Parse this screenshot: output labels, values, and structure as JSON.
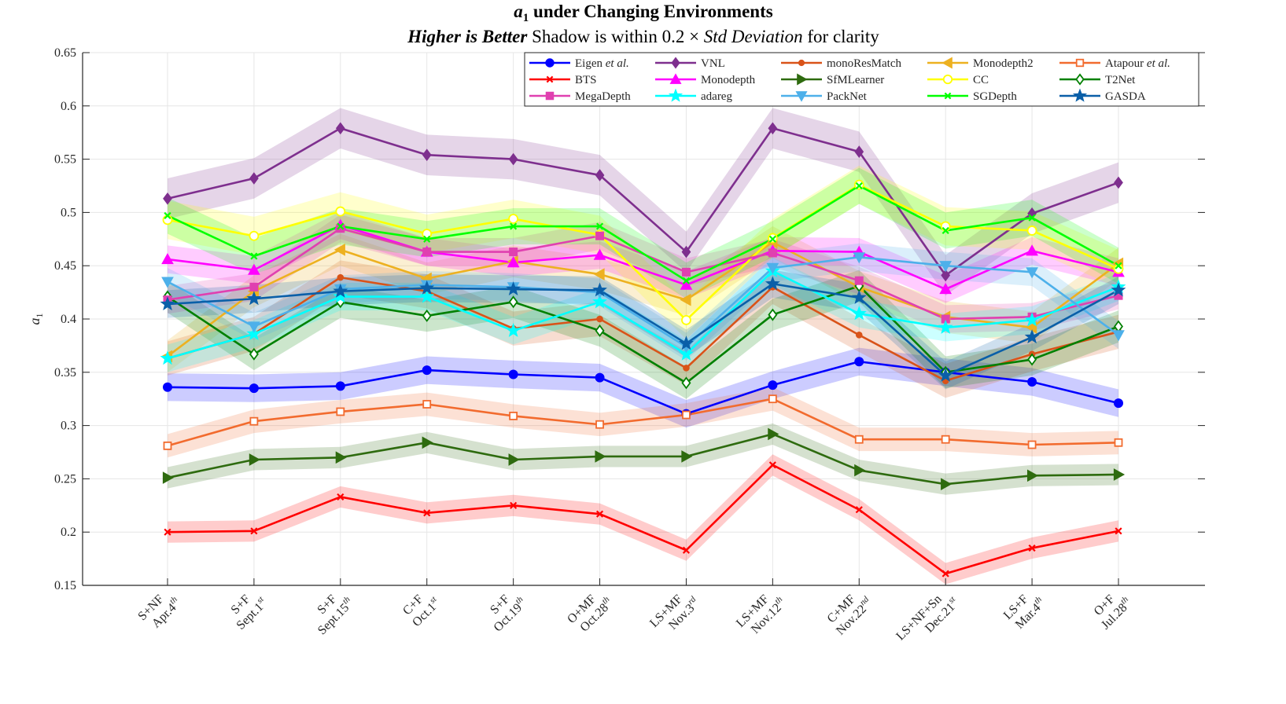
{
  "chart_data": {
    "type": "line",
    "title": "a1 under Changing Environments",
    "title_main": "under Changing Environments",
    "title_symbol": "a",
    "title_subscript": "1",
    "subtitle_parts": {
      "bold": "Higher is Better",
      "plain1": " Shadow is within 0.2 × ",
      "italic": "Std Deviation",
      "plain2": " for clarity"
    },
    "ylabel": "a",
    "ylabel_subscript": "1",
    "ylim": [
      0.15,
      0.65
    ],
    "yticks": [
      "0.15",
      "0.2",
      "0.25",
      "0.3",
      "0.35",
      "0.4",
      "0.45",
      "0.5",
      "0.55",
      "0.6",
      "0.65"
    ],
    "grid": true,
    "legend_position": "top-right",
    "categories": [
      {
        "line1": "S+NF",
        "line2": "Apr.4",
        "sup": "th"
      },
      {
        "line1": "S+F",
        "line2": "Sept.1",
        "sup": "st"
      },
      {
        "line1": "S+F",
        "line2": "Sept.15",
        "sup": "th"
      },
      {
        "line1": "C+F",
        "line2": "Oct.1",
        "sup": "st"
      },
      {
        "line1": "S+F",
        "line2": "Oct.19",
        "sup": "th"
      },
      {
        "line1": "O+MF",
        "line2": "Oct.28",
        "sup": "th"
      },
      {
        "line1": "LS+MF",
        "line2": "Nov.3",
        "sup": "rd"
      },
      {
        "line1": "LS+MF",
        "line2": "Nov.12",
        "sup": "th"
      },
      {
        "line1": "C+MF",
        "line2": "Nov.22",
        "sup": "nd"
      },
      {
        "line1": "LS+NF+Sn",
        "line2": "Dec.21",
        "sup": "st"
      },
      {
        "line1": "LS+F",
        "line2": "Mar.4",
        "sup": "th"
      },
      {
        "line1": "O+F",
        "line2": "Jul.28",
        "sup": "th"
      }
    ],
    "series": [
      {
        "name": "Eigen",
        "name_suffix": " et al.",
        "color": "#0000ff",
        "marker": "circle",
        "values": [
          0.336,
          0.335,
          0.337,
          0.352,
          0.348,
          0.345,
          0.311,
          0.338,
          0.36,
          0.35,
          0.341,
          0.321
        ],
        "shade": 0.013
      },
      {
        "name": "VNL",
        "color": "#7e2f8e",
        "marker": "diamond",
        "values": [
          0.513,
          0.532,
          0.579,
          0.554,
          0.55,
          0.535,
          0.463,
          0.579,
          0.557,
          0.441,
          0.499,
          0.528
        ],
        "shade": 0.019
      },
      {
        "name": "monoResMatch",
        "color": "#d95319",
        "marker": "dot",
        "values": [
          0.363,
          0.386,
          0.439,
          0.426,
          0.391,
          0.4,
          0.354,
          0.43,
          0.385,
          0.342,
          0.367,
          0.388
        ],
        "shade": 0.016
      },
      {
        "name": "Monodepth2",
        "color": "#edb120",
        "marker": "triangle-left",
        "values": [
          0.365,
          0.426,
          0.465,
          0.438,
          0.454,
          0.442,
          0.418,
          0.472,
          0.43,
          0.402,
          0.392,
          0.452
        ],
        "shade": 0.015
      },
      {
        "name": "Atapour",
        "name_suffix": " et al.",
        "color": "#f26b2e",
        "marker": "square-open",
        "values": [
          0.281,
          0.304,
          0.313,
          0.32,
          0.309,
          0.301,
          0.31,
          0.325,
          0.287,
          0.287,
          0.282,
          0.284
        ],
        "shade": 0.011
      },
      {
        "name": "BTS",
        "color": "#ff0000",
        "marker": "x",
        "values": [
          0.2,
          0.201,
          0.233,
          0.218,
          0.225,
          0.217,
          0.183,
          0.263,
          0.221,
          0.161,
          0.185,
          0.201
        ],
        "shade": 0.01
      },
      {
        "name": "Monodepth",
        "color": "#ff00ff",
        "marker": "triangle-up",
        "values": [
          0.456,
          0.446,
          0.488,
          0.463,
          0.453,
          0.46,
          0.432,
          0.464,
          0.463,
          0.428,
          0.464,
          0.444
        ],
        "shade": 0.013
      },
      {
        "name": "SfMLearner",
        "color": "#2e6b0f",
        "marker": "triangle-right",
        "values": [
          0.251,
          0.268,
          0.27,
          0.284,
          0.268,
          0.271,
          0.271,
          0.292,
          0.258,
          0.245,
          0.253,
          0.254
        ],
        "shade": 0.01
      },
      {
        "name": "CC",
        "color": "#ffff00",
        "marker": "circle-open",
        "values": [
          0.493,
          0.478,
          0.501,
          0.48,
          0.494,
          0.479,
          0.399,
          0.476,
          0.526,
          0.487,
          0.483,
          0.447
        ],
        "shade": 0.018
      },
      {
        "name": "T2Net",
        "color": "#008000",
        "marker": "diamond-open",
        "values": [
          0.421,
          0.367,
          0.416,
          0.403,
          0.416,
          0.389,
          0.34,
          0.404,
          0.431,
          0.35,
          0.362,
          0.393
        ],
        "shade": 0.015
      },
      {
        "name": "MegaDepth",
        "color": "#e040b0",
        "marker": "square",
        "values": [
          0.418,
          0.43,
          0.485,
          0.463,
          0.463,
          0.478,
          0.444,
          0.462,
          0.436,
          0.4,
          0.402,
          0.422
        ],
        "shade": 0.013
      },
      {
        "name": "adareg",
        "color": "#00ffff",
        "marker": "star",
        "values": [
          0.363,
          0.386,
          0.421,
          0.421,
          0.389,
          0.416,
          0.367,
          0.445,
          0.405,
          0.392,
          0.399,
          0.43
        ],
        "shade": 0.013
      },
      {
        "name": "PackNet",
        "color": "#4db0ea",
        "marker": "triangle-down",
        "values": [
          0.435,
          0.393,
          0.428,
          0.432,
          0.43,
          0.425,
          0.374,
          0.448,
          0.458,
          0.45,
          0.444,
          0.385
        ],
        "shade": 0.013
      },
      {
        "name": "SGDepth",
        "color": "#00ff00",
        "marker": "x",
        "values": [
          0.497,
          0.459,
          0.487,
          0.475,
          0.487,
          0.487,
          0.436,
          0.475,
          0.525,
          0.483,
          0.495,
          0.45
        ],
        "shade": 0.017
      },
      {
        "name": "GASDA",
        "color": "#0a5fa8",
        "marker": "star",
        "values": [
          0.414,
          0.419,
          0.426,
          0.429,
          0.428,
          0.427,
          0.377,
          0.433,
          0.42,
          0.347,
          0.383,
          0.427
        ],
        "shade": 0.013
      }
    ]
  }
}
